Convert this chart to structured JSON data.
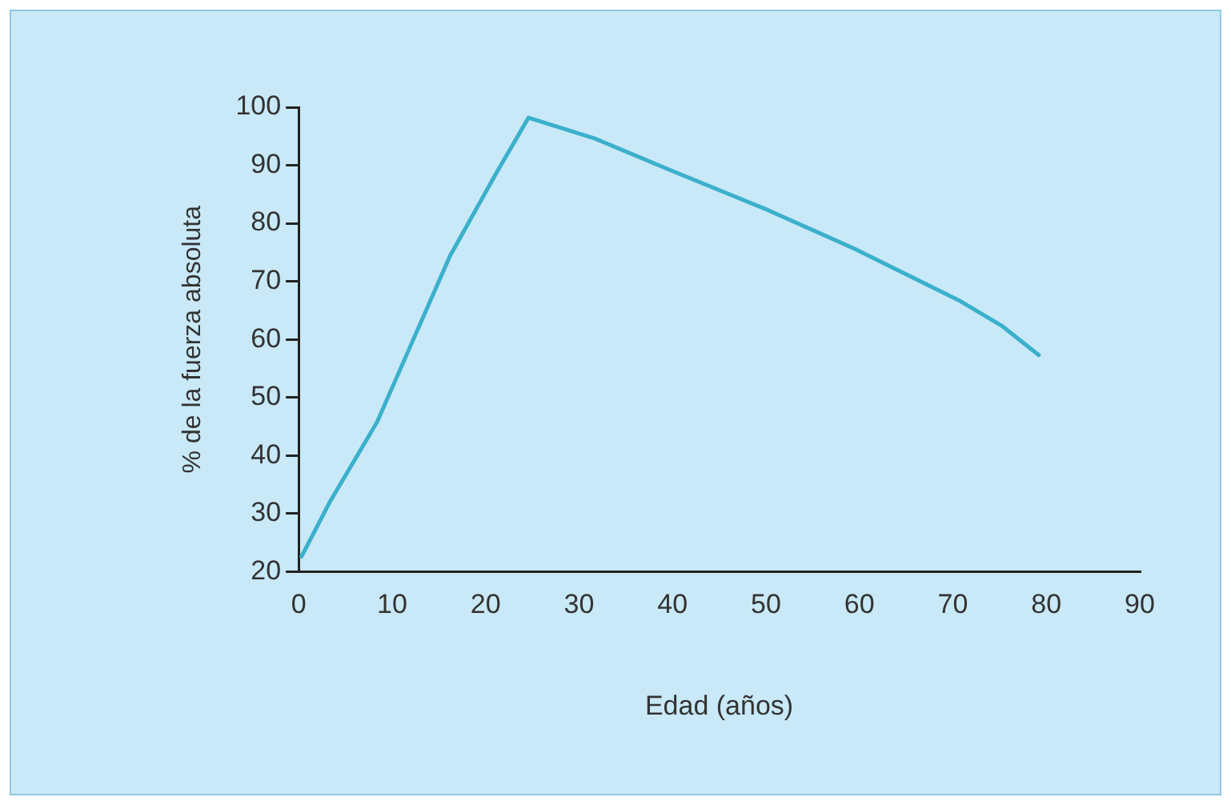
{
  "chart_data": {
    "type": "line",
    "xlabel": "Edad (años)",
    "ylabel": "% de la fuerza absoluta",
    "x": [
      0.3,
      3.3,
      8.4,
      16.2,
      21.2,
      24.6,
      31.7,
      40,
      50.2,
      59.5,
      70.8,
      75.2,
      79.2
    ],
    "series": [
      {
        "color": "#3bb0cc",
        "values": [
          22.6,
          31.9,
          45.8,
          74.4,
          88.8,
          98.2,
          94.6,
          89,
          82.3,
          75.6,
          66.6,
          62.4,
          57.3
        ]
      }
    ],
    "xlim": [
      0,
      90
    ],
    "xticks": [
      0,
      10,
      20,
      30,
      40,
      50,
      60,
      70,
      80,
      90
    ],
    "ylim": [
      20,
      100
    ],
    "yticks": [
      20,
      30,
      40,
      50,
      60,
      70,
      80,
      90,
      100
    ],
    "grid": false,
    "legend": false,
    "marker": "none",
    "line_style": "solid"
  }
}
